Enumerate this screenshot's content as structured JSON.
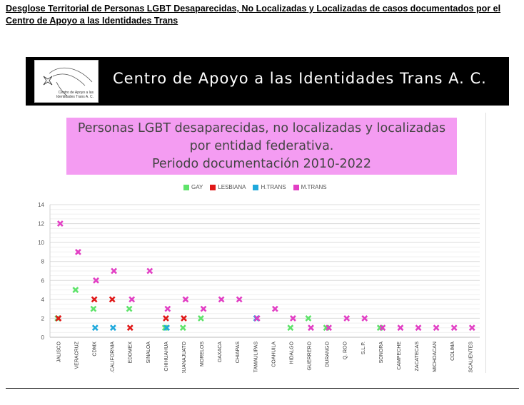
{
  "document": {
    "title": "Desglose Territorial de Personas LGBT Desaparecidas, No Localizadas y Localizadas de casos documentados por el Centro de Apoyo a las Identidades Trans"
  },
  "banner": {
    "title": "Centro de Apoyo a las Identidades Trans A. C.",
    "logo_text": "Centro de Apoyo a las Identidades Trans A. C."
  },
  "chart_data": {
    "type": "scatter",
    "title_lines": [
      "Personas LGBT desaparecidas, no localizadas y localizadas",
      "por entidad federativa.",
      "Periodo documentación 2010-2022"
    ],
    "ylim": [
      0,
      14
    ],
    "yticks": [
      "0",
      "2",
      "4",
      "6",
      "8",
      "10",
      "12",
      "14"
    ],
    "legend_position": "top-center",
    "categories": [
      "JALISCO",
      "VERACRUZ",
      "CDMX",
      "B.CALIFORNIA",
      "EDOMEX",
      "SINALOA",
      "CHIHUAHUA",
      "GUANAJUATO",
      "MORELOS",
      "OAXACA",
      "CHIAPAS",
      "TAMAULIPAS",
      "COAHUILA",
      "HIDALGO",
      "GUERRERO",
      "DURANGO",
      "Q. ROO",
      "S.L.P.",
      "SONORA",
      "CAMPECHE",
      "ZACATECAS",
      "MICHOACAN",
      "COLIMA",
      "AGUASCALIENTES"
    ],
    "series": [
      {
        "name": "GAY",
        "color": "#5fe36b",
        "values": [
          2,
          5,
          3,
          null,
          3,
          null,
          1,
          1,
          2,
          null,
          null,
          null,
          null,
          1,
          2,
          1,
          null,
          null,
          1,
          null,
          null,
          null,
          null,
          null
        ]
      },
      {
        "name": "LESBIANA",
        "color": "#e01818",
        "values": [
          2,
          null,
          4,
          4,
          1,
          null,
          2,
          2,
          null,
          null,
          null,
          null,
          null,
          null,
          null,
          null,
          null,
          null,
          null,
          null,
          null,
          null,
          null,
          null
        ]
      },
      {
        "name": "H.TRANS",
        "color": "#1fa9dc",
        "values": [
          null,
          null,
          1,
          1,
          null,
          null,
          1,
          null,
          null,
          null,
          null,
          2,
          null,
          null,
          null,
          null,
          null,
          null,
          null,
          null,
          null,
          null,
          null,
          null
        ]
      },
      {
        "name": "M.TRANS",
        "color": "#e23fc4",
        "values": [
          12,
          9,
          6,
          7,
          4,
          7,
          3,
          4,
          3,
          4,
          4,
          2,
          3,
          2,
          1,
          1,
          2,
          2,
          1,
          1,
          1,
          1,
          1,
          1
        ]
      }
    ]
  }
}
